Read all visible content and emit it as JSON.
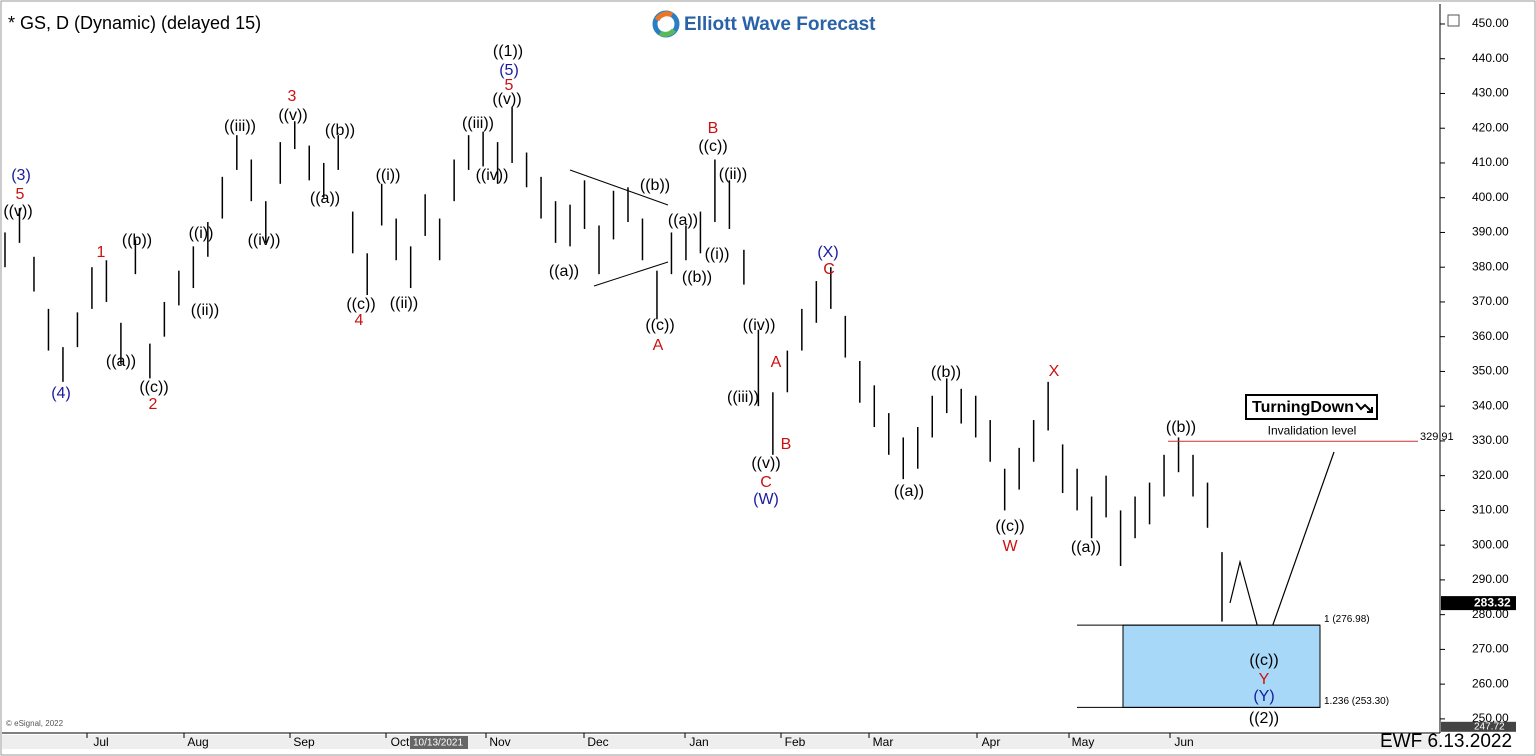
{
  "chart_data": {
    "type": "ohlc",
    "title": "* GS, D (Dynamic) (delayed 15)",
    "brand": "Elliott Wave Forecast",
    "footer": "EWF 6.13.2022",
    "copyright": "© eSignal, 2022",
    "cursor_date": "10/13/2021",
    "badge": "TurningDown",
    "months": [
      "Jul",
      "Aug",
      "Sep",
      "Oct",
      "Nov",
      "Dec",
      "Jan",
      "Feb",
      "Mar",
      "Apr",
      "May",
      "Jun"
    ],
    "ylim": [
      246.8,
      454.6
    ],
    "yticks": [
      {
        "value": 250,
        "label": "250.00"
      },
      {
        "value": 260,
        "label": "260.00"
      },
      {
        "value": 270,
        "label": "270.00"
      },
      {
        "value": 280,
        "label": "280.00"
      },
      {
        "value": 290,
        "label": "290.00"
      },
      {
        "value": 300,
        "label": "300.00"
      },
      {
        "value": 310,
        "label": "310.00"
      },
      {
        "value": 320,
        "label": "320.00"
      },
      {
        "value": 330,
        "label": "330.00"
      },
      {
        "value": 340,
        "label": "340.00"
      },
      {
        "value": 350,
        "label": "350.00"
      },
      {
        "value": 360,
        "label": "360.00"
      },
      {
        "value": 370,
        "label": "370.00"
      },
      {
        "value": 380,
        "label": "380.00"
      },
      {
        "value": 390,
        "label": "390.00"
      },
      {
        "value": 400,
        "label": "400.00"
      },
      {
        "value": 410,
        "label": "410.00"
      },
      {
        "value": 420,
        "label": "420.00"
      },
      {
        "value": 430,
        "label": "430.00"
      },
      {
        "value": 440,
        "label": "440.00"
      },
      {
        "value": 450,
        "label": "450.00"
      }
    ],
    "color": "#000000",
    "high": [
      390,
      397,
      383,
      368,
      357,
      367,
      380,
      382,
      364,
      388,
      358,
      370,
      379,
      386,
      393,
      406,
      418,
      411,
      399,
      416,
      422,
      415,
      410,
      418,
      396,
      384,
      404,
      394,
      386,
      401,
      394,
      411,
      418,
      419,
      416,
      426,
      413,
      406,
      399,
      398,
      405,
      392,
      402,
      403,
      394,
      379,
      390,
      392,
      396,
      411,
      405,
      385,
      362,
      344,
      356,
      368,
      376,
      380,
      366,
      353,
      346,
      338,
      331,
      334,
      343,
      348,
      345,
      343,
      336,
      322,
      328,
      336,
      347,
      329,
      322,
      314,
      320,
      310,
      314,
      318,
      326,
      331,
      326,
      318,
      298
    ],
    "low": [
      380,
      387,
      373,
      356,
      347,
      357,
      368,
      370,
      352,
      378,
      348,
      360,
      369,
      374,
      383,
      394,
      408,
      399,
      387,
      404,
      414,
      405,
      400,
      408,
      384,
      372,
      392,
      382,
      374,
      389,
      382,
      399,
      408,
      409,
      404,
      410,
      403,
      394,
      387,
      386,
      391,
      378,
      388,
      393,
      382,
      365,
      378,
      382,
      384,
      393,
      391,
      375,
      340,
      326,
      344,
      356,
      364,
      368,
      354,
      341,
      334,
      326,
      319,
      322,
      331,
      338,
      335,
      331,
      324,
      310,
      316,
      324,
      333,
      315,
      310,
      302,
      308,
      294,
      302,
      306,
      314,
      321,
      314,
      305,
      278
    ],
    "last_price": 283.32,
    "low_marker": {
      "value": 247.72,
      "label": "247.72"
    },
    "invalidation": {
      "name": "Invalidation level",
      "value": 329.91
    },
    "fib_levels": [
      {
        "value": 276.98,
        "label": "1 (276.98)"
      },
      {
        "value": 253.3,
        "label": "1.236 (253.30)"
      }
    ],
    "fib_color": "#a8d8f8",
    "wave_labels": [
      {
        "text": "(3)",
        "color": "#1a1aa0"
      },
      {
        "text": "5",
        "color": "#cc1111"
      },
      {
        "text": "((v))",
        "color": "#000000"
      },
      {
        "text": "(4)",
        "color": "#1a1aa0"
      },
      {
        "text": "1",
        "color": "#cc1111"
      },
      {
        "text": "((a))",
        "color": "#000000"
      },
      {
        "text": "((b))",
        "color": "#000000"
      },
      {
        "text": "((c))",
        "color": "#000000"
      },
      {
        "text": "2",
        "color": "#cc1111"
      },
      {
        "text": "((i))",
        "color": "#000000"
      },
      {
        "text": "((ii))",
        "color": "#000000"
      },
      {
        "text": "((iii))",
        "color": "#000000"
      },
      {
        "text": "((iv))",
        "color": "#000000"
      },
      {
        "text": "3",
        "color": "#cc1111"
      },
      {
        "text": "((v))",
        "color": "#000000"
      },
      {
        "text": "((a))",
        "color": "#000000"
      },
      {
        "text": "((b))",
        "color": "#000000"
      },
      {
        "text": "((c))",
        "color": "#000000"
      },
      {
        "text": "4",
        "color": "#cc1111"
      },
      {
        "text": "((i))",
        "color": "#000000"
      },
      {
        "text": "((ii))",
        "color": "#000000"
      },
      {
        "text": "((iii))",
        "color": "#000000"
      },
      {
        "text": "((iv))",
        "color": "#000000"
      },
      {
        "text": "((v))",
        "color": "#000000"
      },
      {
        "text": "5",
        "color": "#cc1111"
      },
      {
        "text": "(5)",
        "color": "#1a1aa0"
      },
      {
        "text": "((1))",
        "color": "#000000"
      },
      {
        "text": "((a))",
        "color": "#000000"
      },
      {
        "text": "((b))",
        "color": "#000000"
      },
      {
        "text": "((c))",
        "color": "#000000"
      },
      {
        "text": "A",
        "color": "#cc1111"
      },
      {
        "text": "((a))",
        "color": "#000000"
      },
      {
        "text": "((b))",
        "color": "#000000"
      },
      {
        "text": "((c))",
        "color": "#000000"
      },
      {
        "text": "B",
        "color": "#cc1111"
      },
      {
        "text": "((ii))",
        "color": "#000000"
      },
      {
        "text": "((i))",
        "color": "#000000"
      },
      {
        "text": "((iv))",
        "color": "#000000"
      },
      {
        "text": "A",
        "color": "#cc1111"
      },
      {
        "text": "((iii))",
        "color": "#000000"
      },
      {
        "text": "B",
        "color": "#cc1111"
      },
      {
        "text": "((v))",
        "color": "#000000"
      },
      {
        "text": "C",
        "color": "#cc1111"
      },
      {
        "text": "(W)",
        "color": "#1a1aa0"
      },
      {
        "text": "(X)",
        "color": "#1a1aa0"
      },
      {
        "text": "C",
        "color": "#cc1111"
      },
      {
        "text": "((a))",
        "color": "#000000"
      },
      {
        "text": "((b))",
        "color": "#000000"
      },
      {
        "text": "X",
        "color": "#cc1111"
      },
      {
        "text": "((c))",
        "color": "#000000"
      },
      {
        "text": "W",
        "color": "#cc1111"
      },
      {
        "text": "((a))",
        "color": "#000000"
      },
      {
        "text": "((b))",
        "color": "#000000"
      },
      {
        "text": "((c))",
        "color": "#000000"
      },
      {
        "text": "Y",
        "color": "#cc1111"
      },
      {
        "text": "(Y)",
        "color": "#1a1aa0"
      },
      {
        "text": "((2))",
        "color": "#000000"
      }
    ]
  }
}
